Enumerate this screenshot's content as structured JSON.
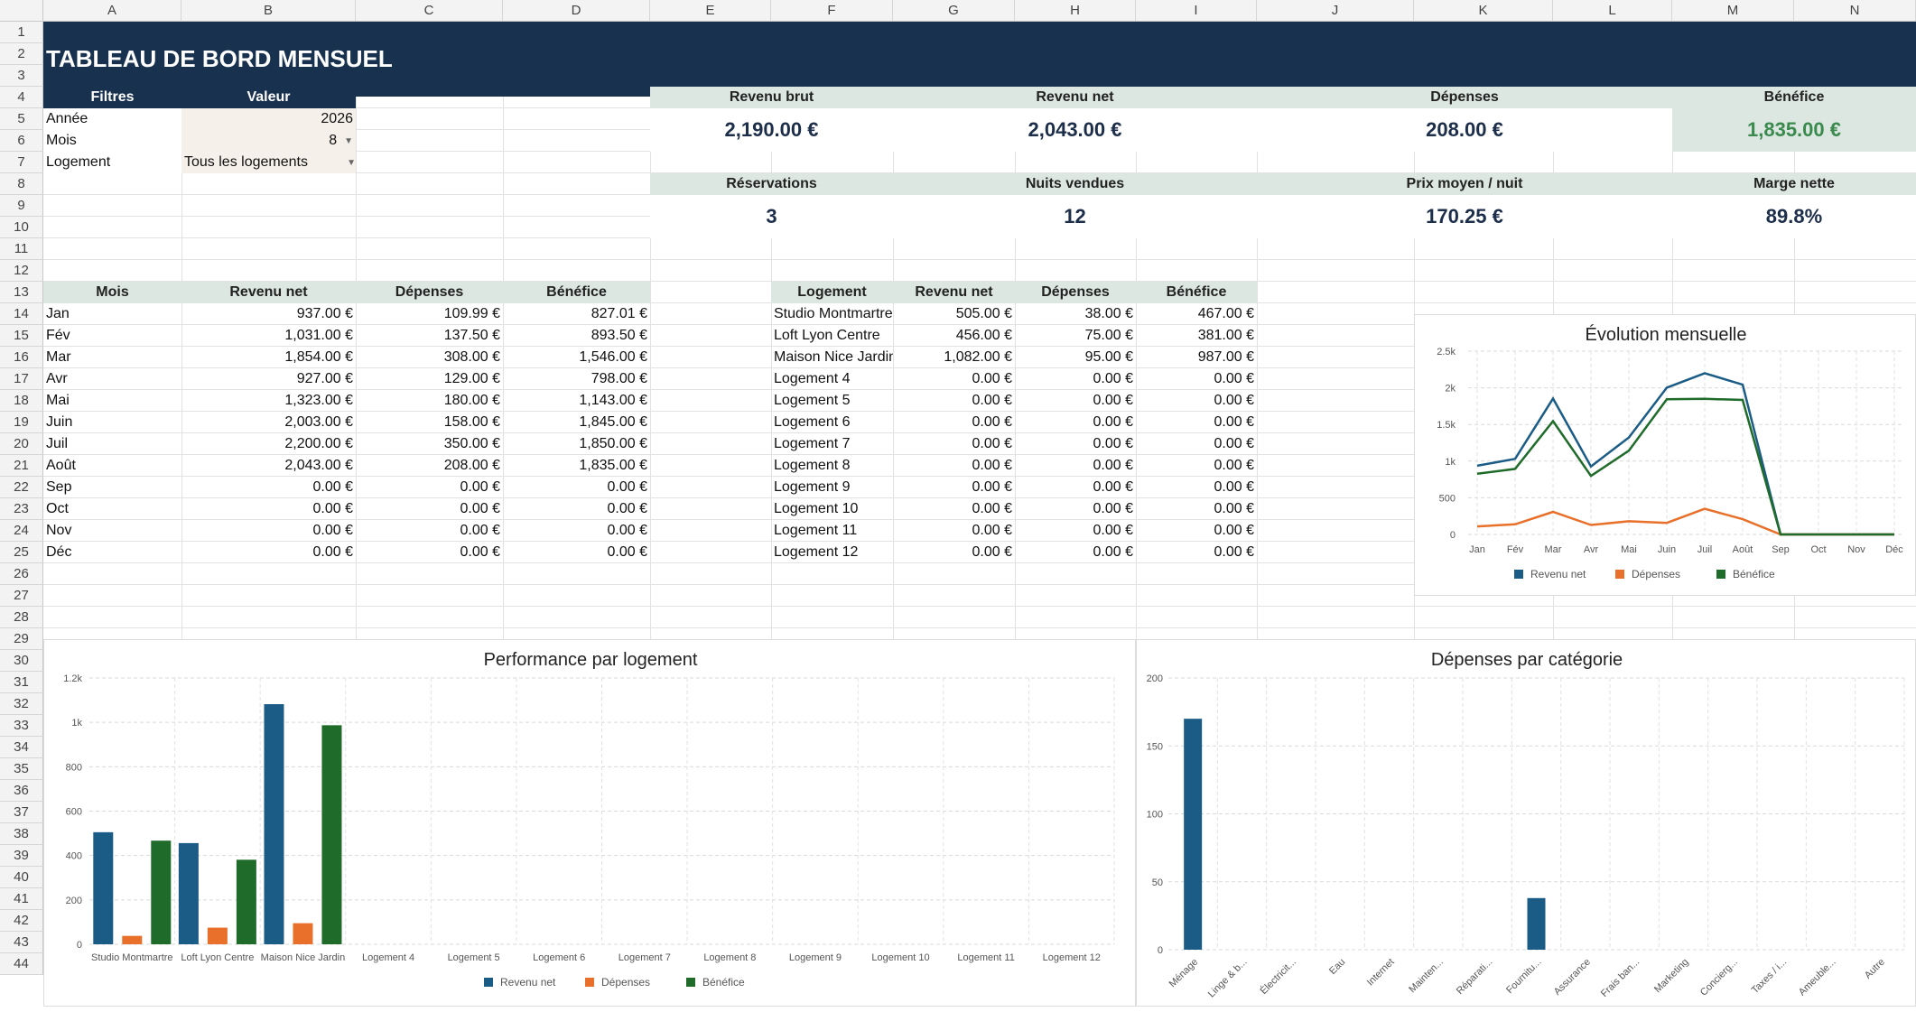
{
  "columns": [
    "A",
    "B",
    "C",
    "D",
    "E",
    "F",
    "G",
    "H",
    "I",
    "J",
    "K",
    "L",
    "M",
    "N"
  ],
  "rows": [
    "1",
    "2",
    "3",
    "4",
    "5",
    "6",
    "7",
    "8",
    "9",
    "10",
    "11",
    "12",
    "13",
    "14",
    "15",
    "16",
    "17",
    "18",
    "19",
    "20",
    "21",
    "22",
    "23",
    "24",
    "25",
    "26",
    "27",
    "28",
    "29",
    "30",
    "31",
    "32",
    "33",
    "34",
    "35",
    "36",
    "37",
    "38",
    "39",
    "40",
    "41",
    "42",
    "43",
    "44"
  ],
  "title": "TABLEAU DE BORD MENSUEL",
  "filters": {
    "header_label": "Filtres",
    "header_value": "Valeur",
    "rows": [
      {
        "label": "Année",
        "value": "2026"
      },
      {
        "label": "Mois",
        "value": "8"
      },
      {
        "label": "Logement",
        "value": "Tous les logements"
      }
    ]
  },
  "kpis_row1": [
    {
      "label": "Revenu brut",
      "value": "2,190.00 €"
    },
    {
      "label": "Revenu net",
      "value": "2,043.00 €"
    },
    {
      "label": "Dépenses",
      "value": "208.00 €"
    },
    {
      "label": "Bénéfice",
      "value": "1,835.00 €"
    }
  ],
  "kpis_row2": [
    {
      "label": "Réservations",
      "value": "3"
    },
    {
      "label": "Nuits vendues",
      "value": "12"
    },
    {
      "label": "Prix moyen / nuit",
      "value": "170.25 €"
    },
    {
      "label": "Marge nette",
      "value": "89.8%"
    }
  ],
  "monthly_table": {
    "headers": [
      "Mois",
      "Revenu net",
      "Dépenses",
      "Bénéfice"
    ],
    "rows": [
      [
        "Jan",
        "937.00 €",
        "109.99 €",
        "827.01 €"
      ],
      [
        "Fév",
        "1,031.00 €",
        "137.50 €",
        "893.50 €"
      ],
      [
        "Mar",
        "1,854.00 €",
        "308.00 €",
        "1,546.00 €"
      ],
      [
        "Avr",
        "927.00 €",
        "129.00 €",
        "798.00 €"
      ],
      [
        "Mai",
        "1,323.00 €",
        "180.00 €",
        "1,143.00 €"
      ],
      [
        "Juin",
        "2,003.00 €",
        "158.00 €",
        "1,845.00 €"
      ],
      [
        "Juil",
        "2,200.00 €",
        "350.00 €",
        "1,850.00 €"
      ],
      [
        "Août",
        "2,043.00 €",
        "208.00 €",
        "1,835.00 €"
      ],
      [
        "Sep",
        "0.00 €",
        "0.00 €",
        "0.00 €"
      ],
      [
        "Oct",
        "0.00 €",
        "0.00 €",
        "0.00 €"
      ],
      [
        "Nov",
        "0.00 €",
        "0.00 €",
        "0.00 €"
      ],
      [
        "Déc",
        "0.00 €",
        "0.00 €",
        "0.00 €"
      ]
    ]
  },
  "property_table": {
    "headers": [
      "Logement",
      "Revenu net",
      "Dépenses",
      "Bénéfice"
    ],
    "rows": [
      [
        "Studio Montmartre",
        "505.00 €",
        "38.00 €",
        "467.00 €"
      ],
      [
        "Loft Lyon Centre",
        "456.00 €",
        "75.00 €",
        "381.00 €"
      ],
      [
        "Maison Nice Jardin",
        "1,082.00 €",
        "95.00 €",
        "987.00 €"
      ],
      [
        "Logement 4",
        "0.00 €",
        "0.00 €",
        "0.00 €"
      ],
      [
        "Logement 5",
        "0.00 €",
        "0.00 €",
        "0.00 €"
      ],
      [
        "Logement 6",
        "0.00 €",
        "0.00 €",
        "0.00 €"
      ],
      [
        "Logement 7",
        "0.00 €",
        "0.00 €",
        "0.00 €"
      ],
      [
        "Logement 8",
        "0.00 €",
        "0.00 €",
        "0.00 €"
      ],
      [
        "Logement 9",
        "0.00 €",
        "0.00 €",
        "0.00 €"
      ],
      [
        "Logement 10",
        "0.00 €",
        "0.00 €",
        "0.00 €"
      ],
      [
        "Logement 11",
        "0.00 €",
        "0.00 €",
        "0.00 €"
      ],
      [
        "Logement 12",
        "0.00 €",
        "0.00 €",
        "0.00 €"
      ]
    ]
  },
  "colors": {
    "navy": "#17314f",
    "blue": "#1b5c86",
    "orange": "#e8702a",
    "green": "#1e6b2a",
    "kpi_green": "#3a8a4e",
    "header_light": "#dde7e1"
  },
  "chart_data": [
    {
      "type": "line",
      "title": "Évolution mensuelle",
      "categories": [
        "Jan",
        "Fév",
        "Mar",
        "Avr",
        "Mai",
        "Juin",
        "Juil",
        "Août",
        "Sep",
        "Oct",
        "Nov",
        "Déc"
      ],
      "series": [
        {
          "name": "Revenu net",
          "color": "#1b5c86",
          "values": [
            937,
            1031,
            1854,
            927,
            1323,
            2003,
            2200,
            2043,
            0,
            0,
            0,
            0
          ]
        },
        {
          "name": "Dépenses",
          "color": "#e8702a",
          "values": [
            109.99,
            137.5,
            308,
            129,
            180,
            158,
            350,
            208,
            0,
            0,
            0,
            0
          ]
        },
        {
          "name": "Bénéfice",
          "color": "#1e6b2a",
          "values": [
            827.01,
            893.5,
            1546,
            798,
            1143,
            1845,
            1850,
            1835,
            0,
            0,
            0,
            0
          ]
        }
      ],
      "yticks": [
        "0",
        "500",
        "1k",
        "1.5k",
        "2k",
        "2.5k"
      ],
      "ylim": [
        0,
        2500
      ],
      "grid": true,
      "legend": "bottom"
    },
    {
      "type": "bar",
      "title": "Performance par logement",
      "categories": [
        "Studio Montmartre",
        "Loft Lyon Centre",
        "Maison Nice Jardin",
        "Logement 4",
        "Logement 5",
        "Logement 6",
        "Logement 7",
        "Logement 8",
        "Logement 9",
        "Logement 10",
        "Logement 11",
        "Logement 12"
      ],
      "series": [
        {
          "name": "Revenu net",
          "color": "#1b5c86",
          "values": [
            505,
            456,
            1082,
            0,
            0,
            0,
            0,
            0,
            0,
            0,
            0,
            0
          ]
        },
        {
          "name": "Dépenses",
          "color": "#e8702a",
          "values": [
            38,
            75,
            95,
            0,
            0,
            0,
            0,
            0,
            0,
            0,
            0,
            0
          ]
        },
        {
          "name": "Bénéfice",
          "color": "#1e6b2a",
          "values": [
            467,
            381,
            987,
            0,
            0,
            0,
            0,
            0,
            0,
            0,
            0,
            0
          ]
        }
      ],
      "yticks": [
        "0",
        "200",
        "400",
        "600",
        "800",
        "1k",
        "1.2k"
      ],
      "ylim": [
        0,
        1200
      ],
      "grid": true,
      "legend": "bottom"
    },
    {
      "type": "bar",
      "title": "Dépenses par catégorie",
      "categories": [
        "Ménage",
        "Linge & b...",
        "Électricit...",
        "Eau",
        "Internet",
        "Mainten...",
        "Réparati...",
        "Fournitu...",
        "Assurance",
        "Frais ban...",
        "Marketing",
        "Concierg...",
        "Taxes / i...",
        "Ameuble...",
        "Autre"
      ],
      "series": [
        {
          "name": "Dépenses",
          "color": "#1b5c86",
          "values": [
            170,
            0,
            0,
            0,
            0,
            0,
            0,
            38,
            0,
            0,
            0,
            0,
            0,
            0,
            0
          ]
        }
      ],
      "yticks": [
        "0",
        "50",
        "100",
        "150",
        "200"
      ],
      "ylim": [
        0,
        200
      ],
      "grid": true,
      "legend": "none"
    }
  ]
}
